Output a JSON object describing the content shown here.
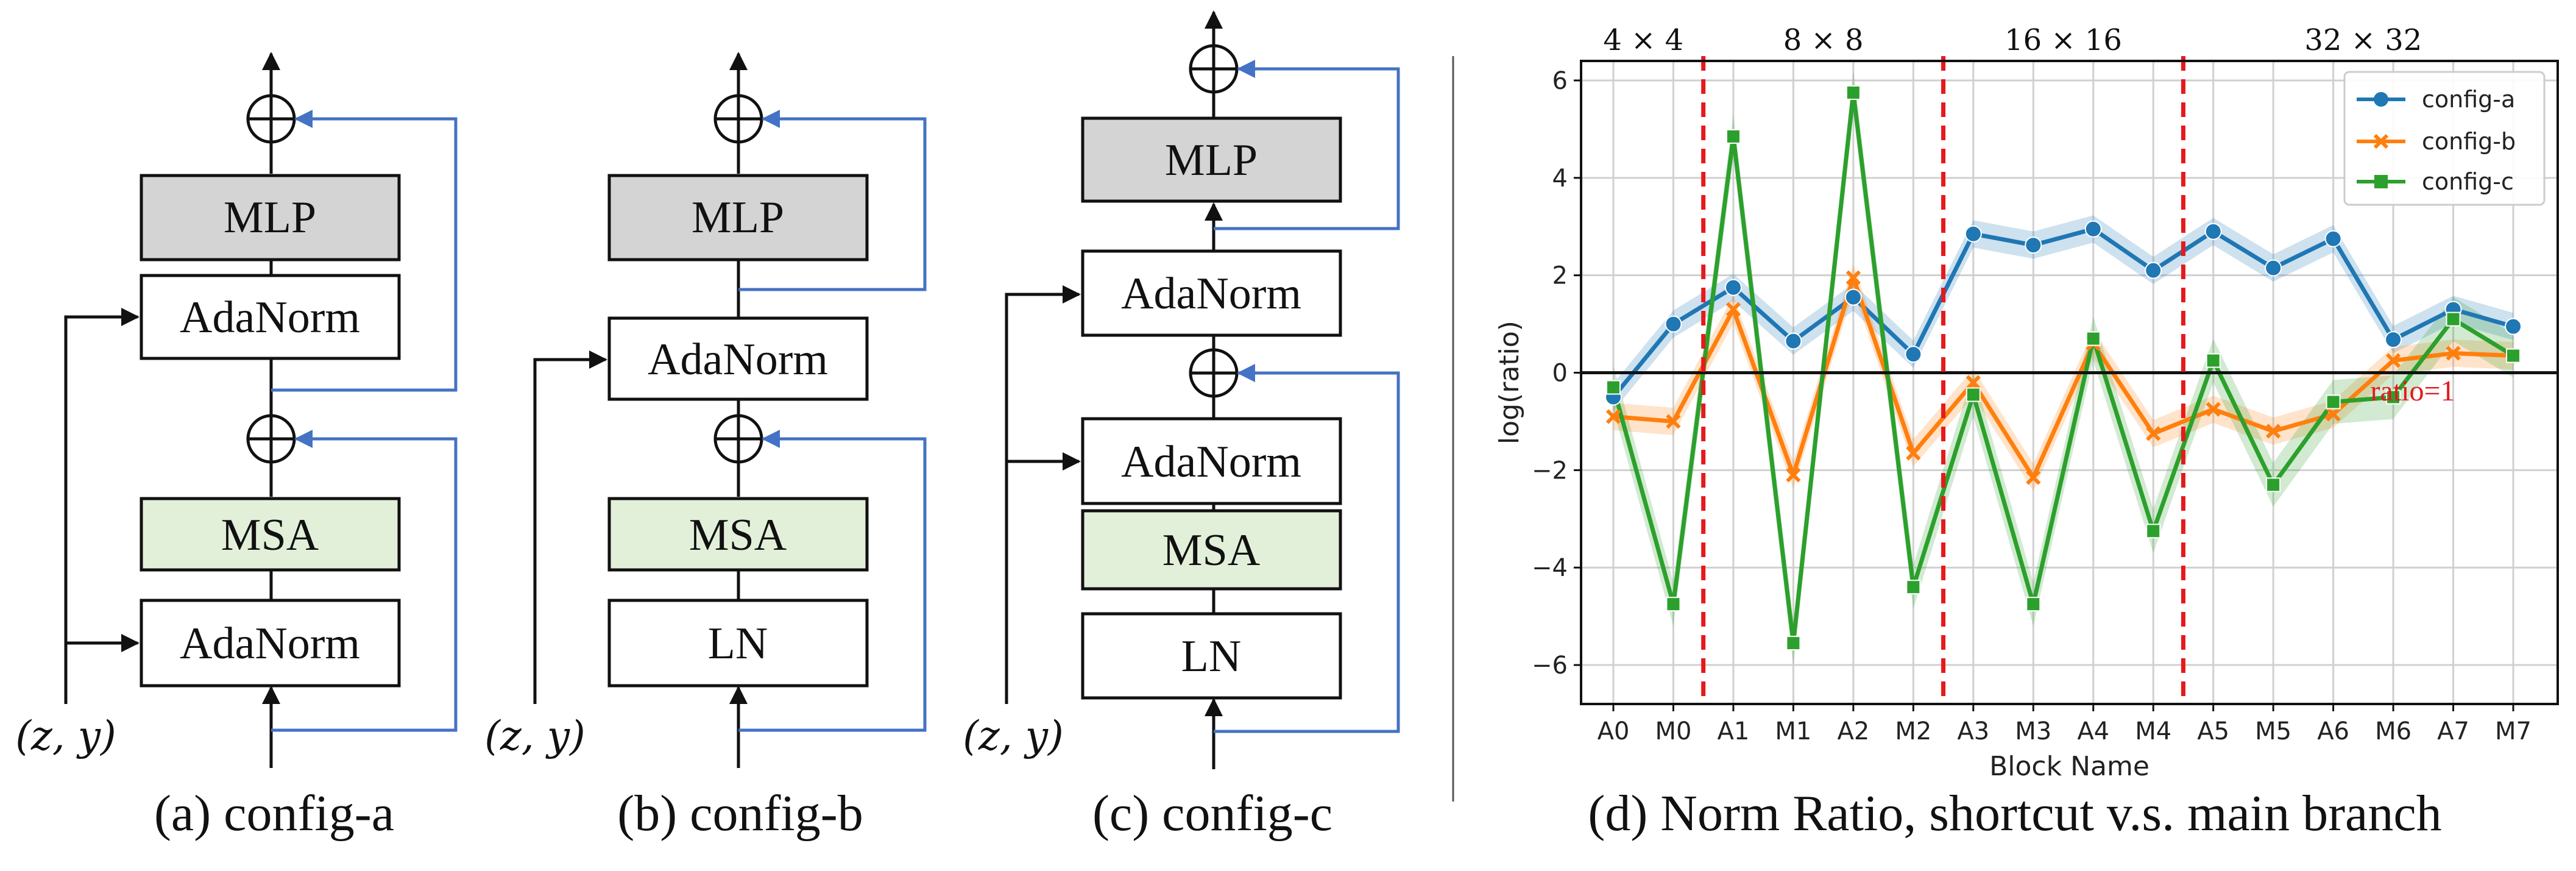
{
  "diagrams": {
    "a": {
      "caption": "(a) config-a",
      "input_label": "(z, y)",
      "blocks": {
        "top": "MLP",
        "upper_norm": "AdaNorm",
        "attn": "MSA",
        "lower_norm": "AdaNorm"
      }
    },
    "b": {
      "caption": "(b) config-b",
      "input_label": "(z, y)",
      "blocks": {
        "top": "MLP",
        "upper_norm": "AdaNorm",
        "attn": "MSA",
        "lower_norm": "LN"
      }
    },
    "c": {
      "caption": "(c) config-c",
      "input_label": "(z, y)",
      "blocks": {
        "top": "MLP",
        "ada_upper": "AdaNorm",
        "ada_lower": "AdaNorm",
        "attn": "MSA",
        "lower_norm": "LN"
      }
    }
  },
  "colors": {
    "mlp_fill": "#d4d4d4",
    "msa_fill": "#e2f0d9",
    "box_fill": "#ffffff",
    "residual": "#4472c4",
    "config_a": "#1f77b4",
    "config_b": "#ff7f0e",
    "config_c": "#2ca02c",
    "divider": "#e41a1c"
  },
  "chart_caption": "(d) Norm Ratio, shortcut v.s. main branch",
  "chart_data": {
    "type": "line",
    "xlabel": "Block Name",
    "ylabel": "log(ratio)",
    "categories": [
      "A0",
      "M0",
      "A1",
      "M1",
      "A2",
      "M2",
      "A3",
      "M3",
      "A4",
      "M4",
      "A5",
      "M5",
      "A6",
      "M6",
      "A7",
      "M7"
    ],
    "ylim": [
      -6.8,
      6.4
    ],
    "yticks": [
      -6,
      -4,
      -2,
      0,
      2,
      4,
      6
    ],
    "grid": true,
    "legend_position": "top-right",
    "series": [
      {
        "name": "config-a",
        "marker": "circle",
        "values": [
          -0.5,
          1.0,
          1.75,
          0.65,
          1.55,
          0.38,
          2.85,
          2.62,
          2.95,
          2.1,
          2.9,
          2.15,
          2.75,
          0.68,
          1.3,
          0.95
        ]
      },
      {
        "name": "config-b",
        "marker": "x",
        "values": [
          -0.9,
          -1.0,
          1.3,
          -2.1,
          1.95,
          -1.65,
          -0.2,
          -2.15,
          0.6,
          -1.25,
          -0.75,
          -1.2,
          -0.85,
          0.25,
          0.4,
          0.35
        ]
      },
      {
        "name": "config-c",
        "marker": "square",
        "values": [
          -0.3,
          -4.75,
          4.85,
          -5.55,
          5.75,
          -4.4,
          -0.45,
          -4.75,
          0.7,
          -3.25,
          0.25,
          -2.3,
          -0.6,
          -0.5,
          1.1,
          0.35
        ]
      }
    ],
    "groups": [
      {
        "label": "4 × 4",
        "from": 0,
        "to": 1
      },
      {
        "label": "8 × 8",
        "from": 2,
        "to": 5
      },
      {
        "label": "16 × 16",
        "from": 6,
        "to": 9
      },
      {
        "label": "32 × 32",
        "from": 10,
        "to": 15
      }
    ],
    "reference_line_label": "ratio=1"
  }
}
